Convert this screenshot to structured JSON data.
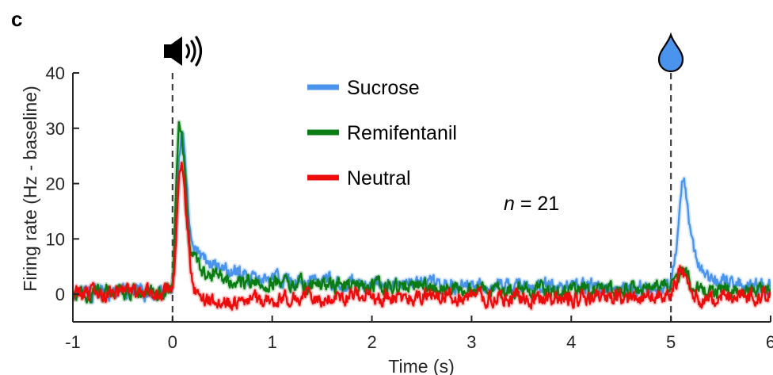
{
  "panel_label": "c",
  "chart_data": {
    "type": "line",
    "xlabel": "Time (s)",
    "ylabel": "Firing rate (Hz - baseline)",
    "xlim": [
      -1,
      6
    ],
    "ylim": [
      -5,
      40
    ],
    "xticks": [
      -1,
      0,
      1,
      2,
      3,
      4,
      5,
      6
    ],
    "yticks": [
      0,
      10,
      20,
      30,
      40
    ],
    "x_tick_labels": [
      "-1",
      "0",
      "1",
      "2",
      "3",
      "4",
      "5",
      "6"
    ],
    "y_tick_labels": [
      "0",
      "10",
      "20",
      "30",
      "40"
    ],
    "event_lines": [
      {
        "x": 0,
        "icon": "speaker-icon"
      },
      {
        "x": 5,
        "icon": "water-drop-icon"
      }
    ],
    "legend_position": "top-center",
    "annotation": {
      "italic": "n",
      "rest": " = 21"
    },
    "series": [
      {
        "name": "Sucrose",
        "color": "#4a94ee",
        "points": [
          [
            -1,
            0.3
          ],
          [
            -0.5,
            0.4
          ],
          [
            -0.05,
            0.6
          ],
          [
            0,
            1.0
          ],
          [
            0.03,
            10
          ],
          [
            0.06,
            24
          ],
          [
            0.09,
            29
          ],
          [
            0.12,
            27
          ],
          [
            0.15,
            18
          ],
          [
            0.18,
            11
          ],
          [
            0.22,
            8.5
          ],
          [
            0.3,
            6.5
          ],
          [
            0.4,
            5.2
          ],
          [
            0.55,
            4.0
          ],
          [
            0.75,
            3.4
          ],
          [
            1.0,
            2.8
          ],
          [
            1.5,
            2.2
          ],
          [
            2.0,
            2.0
          ],
          [
            2.5,
            1.8
          ],
          [
            3.0,
            1.6
          ],
          [
            3.5,
            1.4
          ],
          [
            4.0,
            1.4
          ],
          [
            4.5,
            1.2
          ],
          [
            4.9,
            1.2
          ],
          [
            5.0,
            1.8
          ],
          [
            5.05,
            8
          ],
          [
            5.1,
            20
          ],
          [
            5.13,
            22
          ],
          [
            5.16,
            17
          ],
          [
            5.2,
            11
          ],
          [
            5.25,
            6
          ],
          [
            5.3,
            5.5
          ],
          [
            5.35,
            3.5
          ],
          [
            5.45,
            2.8
          ],
          [
            5.6,
            2.2
          ],
          [
            5.8,
            1.5
          ],
          [
            6.0,
            1.2
          ]
        ]
      },
      {
        "name": "Remifentanil",
        "color": "#0a7d12",
        "points": [
          [
            -1,
            0.2
          ],
          [
            -0.5,
            0.4
          ],
          [
            -0.05,
            0.5
          ],
          [
            0,
            1.0
          ],
          [
            0.03,
            15
          ],
          [
            0.06,
            31
          ],
          [
            0.09,
            30
          ],
          [
            0.12,
            24
          ],
          [
            0.15,
            14
          ],
          [
            0.18,
            8
          ],
          [
            0.22,
            6.5
          ],
          [
            0.3,
            4.5
          ],
          [
            0.4,
            3.6
          ],
          [
            0.55,
            2.8
          ],
          [
            0.75,
            2.4
          ],
          [
            1.0,
            2.0
          ],
          [
            1.5,
            1.6
          ],
          [
            2.0,
            1.5
          ],
          [
            2.5,
            1.2
          ],
          [
            3.0,
            0.9
          ],
          [
            3.5,
            0.8
          ],
          [
            4.0,
            0.8
          ],
          [
            4.5,
            0.8
          ],
          [
            4.9,
            1.0
          ],
          [
            5.0,
            1.5
          ],
          [
            5.05,
            3
          ],
          [
            5.1,
            4.8
          ],
          [
            5.15,
            3.8
          ],
          [
            5.2,
            1.5
          ],
          [
            5.3,
            0.8
          ],
          [
            5.5,
            0.6
          ],
          [
            5.8,
            0.4
          ],
          [
            6.0,
            0.3
          ]
        ]
      },
      {
        "name": "Neutral",
        "color": "#ee0b0b",
        "points": [
          [
            -1,
            0.0
          ],
          [
            -0.5,
            0.3
          ],
          [
            -0.05,
            0.2
          ],
          [
            0,
            0.5
          ],
          [
            0.03,
            8
          ],
          [
            0.06,
            20
          ],
          [
            0.09,
            25
          ],
          [
            0.12,
            20
          ],
          [
            0.15,
            12
          ],
          [
            0.18,
            5
          ],
          [
            0.22,
            1.5
          ],
          [
            0.3,
            -0.5
          ],
          [
            0.45,
            -1.5
          ],
          [
            0.6,
            -1.8
          ],
          [
            0.8,
            -1.2
          ],
          [
            1.0,
            -0.8
          ],
          [
            1.5,
            -0.6
          ],
          [
            2.0,
            -0.4
          ],
          [
            2.5,
            -0.5
          ],
          [
            3.0,
            -0.6
          ],
          [
            3.5,
            -0.8
          ],
          [
            4.0,
            -0.7
          ],
          [
            4.5,
            -0.6
          ],
          [
            4.9,
            -0.3
          ],
          [
            5.0,
            0.3
          ],
          [
            5.05,
            2
          ],
          [
            5.1,
            5
          ],
          [
            5.15,
            3
          ],
          [
            5.2,
            0.5
          ],
          [
            5.3,
            -0.8
          ],
          [
            5.5,
            -0.6
          ],
          [
            5.8,
            -0.4
          ],
          [
            6.0,
            -0.2
          ]
        ]
      }
    ]
  }
}
